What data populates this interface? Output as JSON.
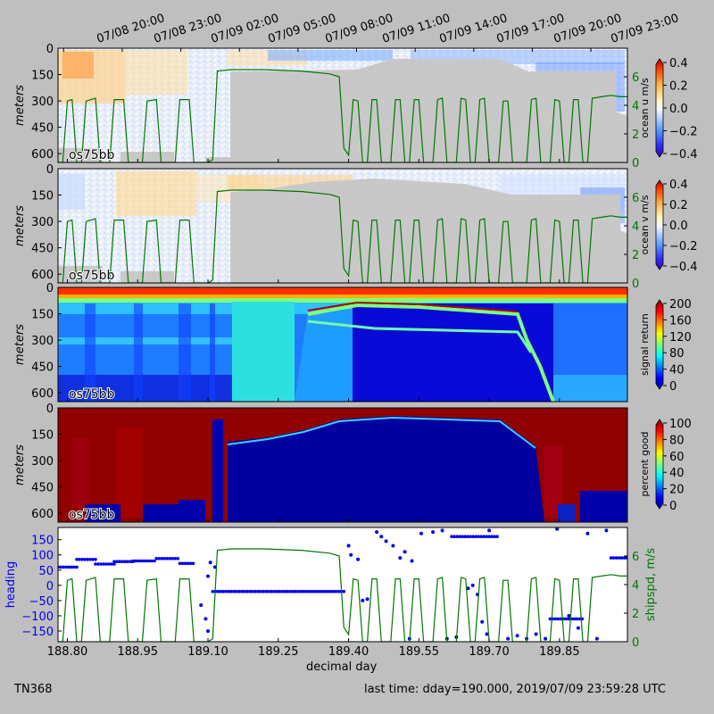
{
  "cruise": "TN368",
  "last_time": "last time: dday=190.000,  2019/07/09 23:59:28 UTC",
  "instrument_label": "os75bb",
  "xlabel": "decimal day",
  "top_time_labels": [
    "07/08 20:00",
    "07/08 23:00",
    "07/09 02:00",
    "07/09 05:00",
    "07/09 08:00",
    "07/09 11:00",
    "07/09 14:00",
    "07/09 17:00",
    "07/09 20:00",
    "07/09 23:00"
  ],
  "colors": {
    "background": "#bfbfbf",
    "no_data": "#c8c8c8",
    "speed_line": "#007700",
    "heading_marker": "#0000ee"
  },
  "chart_data": [
    {
      "type": "heatmap",
      "panel": "ocean u",
      "ylabel": "meters",
      "yticks": [
        "0",
        "150",
        "300",
        "450",
        "600"
      ],
      "ylim": [
        650,
        0
      ],
      "colorbar_label": "ocean u m/s",
      "colorbar_ticks": [
        "0.4",
        "0.2",
        "0.0",
        "−0.2",
        "−0.4"
      ],
      "colormap": "jet",
      "clim": [
        -0.45,
        0.4
      ],
      "overlay": "ship speed",
      "right_ticks": [
        "0",
        "2",
        "4",
        "6"
      ],
      "right_lim": [
        0,
        8
      ]
    },
    {
      "type": "heatmap",
      "panel": "ocean v",
      "ylabel": "meters",
      "yticks": [
        "0",
        "150",
        "300",
        "450",
        "600"
      ],
      "ylim": [
        650,
        0
      ],
      "colorbar_label": "ocean v m/s",
      "colorbar_ticks": [
        "0.4",
        "0.2",
        "0.0",
        "−0.2",
        "−0.4"
      ],
      "colormap": "jet",
      "clim": [
        -0.45,
        0.4
      ],
      "overlay": "ship speed",
      "right_ticks": [
        "0",
        "2",
        "4",
        "6"
      ],
      "right_lim": [
        0,
        8
      ]
    },
    {
      "type": "heatmap",
      "panel": "signal return",
      "ylabel": "meters",
      "yticks": [
        "0",
        "150",
        "300",
        "450",
        "600"
      ],
      "ylim": [
        650,
        0
      ],
      "colorbar_label": "signal return",
      "colorbar_ticks": [
        "200",
        "160",
        "120",
        "80",
        "40",
        "0"
      ],
      "colormap": "jet",
      "clim": [
        0,
        210
      ]
    },
    {
      "type": "heatmap",
      "panel": "percent good",
      "ylabel": "meters",
      "yticks": [
        "0",
        "150",
        "300",
        "450",
        "600"
      ],
      "ylim": [
        650,
        0
      ],
      "colorbar_label": "percent good",
      "colorbar_ticks": [
        "100",
        "80",
        "60",
        "40",
        "20",
        "0"
      ],
      "colormap": "jet",
      "clim": [
        0,
        105
      ]
    },
    {
      "type": "line",
      "panel": "heading and ship speed",
      "xlim": [
        188.78,
        189.995
      ],
      "xticks": [
        "188.80",
        "188.95",
        "189.10",
        "189.25",
        "189.40",
        "189.55",
        "189.70",
        "189.85"
      ],
      "ylabel_left": "heading",
      "yticks_left": [
        "150",
        "100",
        "50",
        "0",
        "−50",
        "−100",
        "−150"
      ],
      "ylim_left": [
        -185,
        190
      ],
      "ylabel_right": "shipspd, m/s",
      "yticks_right": [
        "0",
        "2",
        "4",
        "6"
      ],
      "ylim_right": [
        0,
        8
      ],
      "series": [
        {
          "name": "heading",
          "style": "markers",
          "segments": [
            {
              "x": [
                188.78,
                188.82
              ],
              "y": [
                60,
                60
              ]
            },
            {
              "x": [
                188.82,
                188.86
              ],
              "y": [
                85,
                85
              ]
            },
            {
              "x": [
                188.86,
                188.9
              ],
              "y": [
                70,
                70
              ]
            },
            {
              "x": [
                188.9,
                188.94
              ],
              "y": [
                78,
                78
              ]
            },
            {
              "x": [
                188.94,
                188.99
              ],
              "y": [
                80,
                80
              ]
            },
            {
              "x": [
                188.99,
                189.04
              ],
              "y": [
                88,
                88
              ]
            },
            {
              "x": [
                189.04,
                189.07
              ],
              "y": [
                72,
                72
              ]
            },
            {
              "x": [
                189.11,
                189.39
              ],
              "y": [
                -20,
                -20
              ]
            },
            {
              "x": [
                189.62,
                189.72
              ],
              "y": [
                160,
                160
              ]
            },
            {
              "x": [
                189.83,
                189.9
              ],
              "y": [
                -110,
                -110
              ]
            },
            {
              "x": [
                189.96,
                189.995
              ],
              "y": [
                90,
                90
              ]
            }
          ],
          "points": [
            {
              "x": 189.085,
              "y": -65
            },
            {
              "x": 189.095,
              "y": -110
            },
            {
              "x": 189.1,
              "y": 30
            },
            {
              "x": 189.105,
              "y": 75
            },
            {
              "x": 189.115,
              "y": 60
            },
            {
              "x": 189.1,
              "y": -150
            },
            {
              "x": 189.4,
              "y": 130
            },
            {
              "x": 189.405,
              "y": 100
            },
            {
              "x": 189.42,
              "y": 85
            },
            {
              "x": 189.43,
              "y": -50
            },
            {
              "x": 189.44,
              "y": -45
            },
            {
              "x": 189.46,
              "y": 175
            },
            {
              "x": 189.47,
              "y": 160
            },
            {
              "x": 189.48,
              "y": 145
            },
            {
              "x": 189.495,
              "y": 130
            },
            {
              "x": 189.51,
              "y": 90
            },
            {
              "x": 189.52,
              "y": 110
            },
            {
              "x": 189.535,
              "y": 80
            },
            {
              "x": 189.53,
              "y": -175
            },
            {
              "x": 189.555,
              "y": 170
            },
            {
              "x": 189.58,
              "y": 175
            },
            {
              "x": 189.6,
              "y": 180
            },
            {
              "x": 189.61,
              "y": -175
            },
            {
              "x": 189.63,
              "y": -170
            },
            {
              "x": 189.655,
              "y": -10
            },
            {
              "x": 189.665,
              "y": 0
            },
            {
              "x": 189.675,
              "y": -30
            },
            {
              "x": 189.685,
              "y": -120
            },
            {
              "x": 189.695,
              "y": -160
            },
            {
              "x": 189.7,
              "y": 180
            },
            {
              "x": 189.74,
              "y": -175
            },
            {
              "x": 189.76,
              "y": -165
            },
            {
              "x": 189.78,
              "y": -175
            },
            {
              "x": 189.8,
              "y": -160
            },
            {
              "x": 189.82,
              "y": -175
            },
            {
              "x": 189.845,
              "y": 185
            },
            {
              "x": 189.87,
              "y": -100
            },
            {
              "x": 189.89,
              "y": -140
            },
            {
              "x": 189.91,
              "y": 170
            },
            {
              "x": 189.93,
              "y": -175
            },
            {
              "x": 189.95,
              "y": 180
            }
          ]
        },
        {
          "name": "shipspd",
          "style": "line",
          "segments": [
            {
              "x": [
                188.78,
                188.79,
                188.8,
                188.81,
                188.82
              ],
              "y": [
                0,
                0,
                4.3,
                4.4,
                0
              ]
            },
            {
              "x": [
                188.83,
                188.84,
                188.86,
                188.87
              ],
              "y": [
                0,
                4.3,
                4.5,
                0
              ]
            },
            {
              "x": [
                188.89,
                188.9,
                188.92,
                188.93
              ],
              "y": [
                0,
                4.4,
                4.4,
                0
              ]
            },
            {
              "x": [
                188.96,
                188.97,
                188.99,
                189.0
              ],
              "y": [
                0,
                4.3,
                4.4,
                0
              ]
            },
            {
              "x": [
                189.03,
                189.04,
                189.06,
                189.07
              ],
              "y": [
                0,
                4.4,
                4.4,
                0
              ]
            },
            {
              "x": [
                189.1,
                189.11,
                189.12,
                189.15,
                189.22,
                189.3,
                189.36,
                189.38,
                189.39
              ],
              "y": [
                0,
                0.2,
                6.4,
                6.5,
                6.5,
                6.4,
                6.2,
                6.0,
                1.0
              ]
            },
            {
              "x": [
                189.4,
                189.41,
                189.42,
                189.43
              ],
              "y": [
                0.5,
                4.4,
                4.3,
                0
              ]
            },
            {
              "x": [
                189.44,
                189.45,
                189.46,
                189.47
              ],
              "y": [
                0,
                4.4,
                4.4,
                0
              ]
            },
            {
              "x": [
                189.49,
                189.5,
                189.51,
                189.52
              ],
              "y": [
                0,
                4.4,
                4.4,
                0
              ]
            },
            {
              "x": [
                189.53,
                189.54,
                189.55,
                189.56
              ],
              "y": [
                0,
                4.4,
                4.4,
                0
              ]
            },
            {
              "x": [
                189.58,
                189.59,
                189.6,
                189.61
              ],
              "y": [
                0,
                4.4,
                4.5,
                0
              ]
            },
            {
              "x": [
                189.63,
                189.64,
                189.65,
                189.66
              ],
              "y": [
                0,
                4.5,
                4.4,
                0
              ]
            },
            {
              "x": [
                189.67,
                189.68,
                189.69,
                189.7
              ],
              "y": [
                0,
                4.4,
                4.5,
                0
              ]
            },
            {
              "x": [
                189.72,
                189.73,
                189.74,
                189.75
              ],
              "y": [
                0,
                4.3,
                4.3,
                0
              ]
            },
            {
              "x": [
                189.78,
                189.79,
                189.8,
                189.81
              ],
              "y": [
                0,
                4.4,
                4.5,
                0
              ]
            },
            {
              "x": [
                189.83,
                189.84,
                189.85,
                189.86
              ],
              "y": [
                0,
                4.4,
                4.3,
                0
              ]
            },
            {
              "x": [
                189.87,
                189.88,
                189.89,
                189.9
              ],
              "y": [
                0,
                4.4,
                4.4,
                0
              ]
            },
            {
              "x": [
                189.91,
                189.92,
                189.94,
                189.96,
                189.98,
                189.995
              ],
              "y": [
                0,
                4.5,
                4.6,
                4.7,
                4.6,
                4.6
              ]
            }
          ]
        }
      ]
    }
  ]
}
